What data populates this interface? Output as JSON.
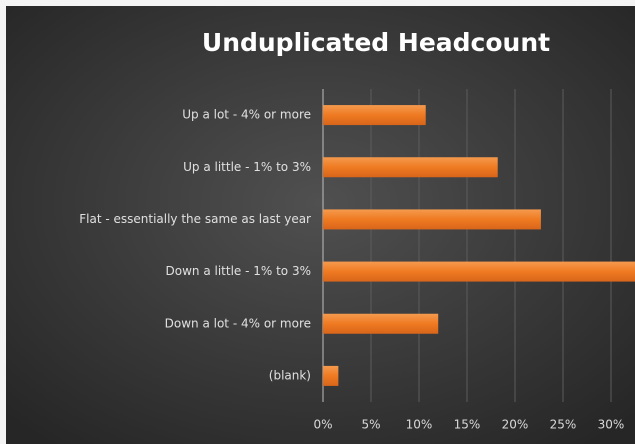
{
  "chart_data": {
    "type": "bar",
    "orientation": "horizontal",
    "title": "Unduplicated Headcount",
    "categories": [
      "Up a lot - 4% or more",
      "Up a little - 1% to 3%",
      "Flat - essentially the same as last year",
      "Down a little - 1% to 3%",
      "Down a lot - 4% or more",
      "(blank)"
    ],
    "values": [
      10.7,
      18.2,
      22.7,
      32.5,
      12.0,
      1.6
    ],
    "color": "#f07d28",
    "xlim": [
      0,
      32.5
    ],
    "xticks": [
      {
        "value": 0,
        "label": "0%"
      },
      {
        "value": 5,
        "label": "5%"
      },
      {
        "value": 10,
        "label": "10%"
      },
      {
        "value": 15,
        "label": "15%"
      },
      {
        "value": 20,
        "label": "20%"
      },
      {
        "value": 25,
        "label": "25%"
      },
      {
        "value": 30,
        "label": "30%"
      }
    ],
    "grid": true
  }
}
